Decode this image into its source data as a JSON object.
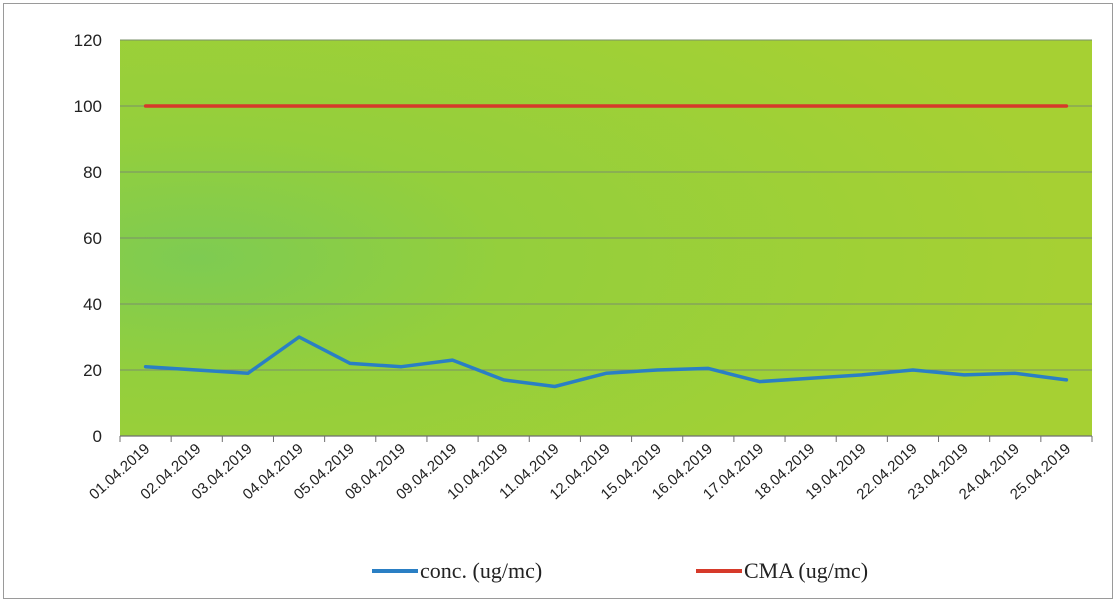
{
  "chart_data": {
    "type": "line",
    "categories": [
      "01.04.2019",
      "02.04.2019",
      "03.04.2019",
      "04.04.2019",
      "05.04.2019",
      "08.04.2019",
      "09.04.2019",
      "10.04.2019",
      "11.04.2019",
      "12.04.2019",
      "15.04.2019",
      "16.04.2019",
      "17.04.2019",
      "18.04.2019",
      "19.04.2019",
      "22.04.2019",
      "23.04.2019",
      "24.04.2019",
      "25.04.2019"
    ],
    "series": [
      {
        "name": "conc. (ug/mc)",
        "color": "#2a7fc4",
        "values": [
          21,
          20,
          19,
          30,
          22,
          21,
          23,
          17,
          15,
          19,
          20,
          20.5,
          16.5,
          17.5,
          18.5,
          20,
          18.5,
          19,
          17
        ]
      },
      {
        "name": "CMA (ug/mc)",
        "color": "#d63a2a",
        "values": [
          100,
          100,
          100,
          100,
          100,
          100,
          100,
          100,
          100,
          100,
          100,
          100,
          100,
          100,
          100,
          100,
          100,
          100,
          100
        ]
      }
    ],
    "ylim": [
      0,
      120
    ],
    "yticks": [
      0,
      20,
      40,
      60,
      80,
      100,
      120
    ],
    "grid": true,
    "legend_position": "bottom",
    "plot_background": "#9ccf3a"
  }
}
